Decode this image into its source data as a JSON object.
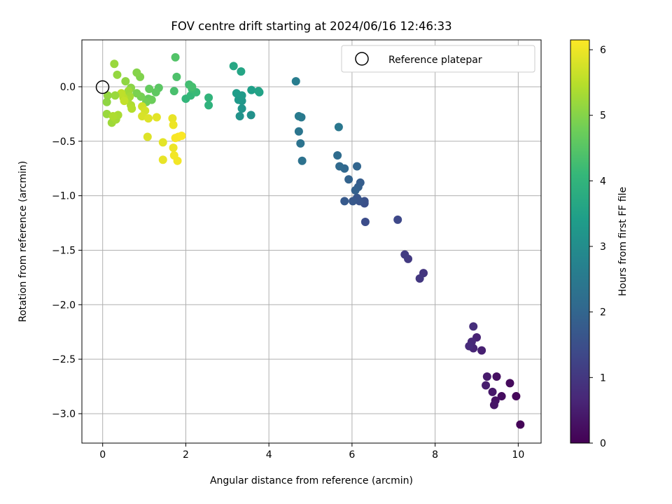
{
  "chart_data": {
    "type": "scatter",
    "title": "FOV centre drift starting at 2024/06/16 12:46:33",
    "xlabel": "Angular distance from reference (arcmin)",
    "ylabel": "Rotation from reference (arcmin)",
    "xlim": [
      -0.5,
      10.55
    ],
    "ylim": [
      -3.27,
      0.43
    ],
    "x_ticks": [
      0,
      2,
      4,
      6,
      8,
      10
    ],
    "x_tick_labels": [
      "0",
      "2",
      "4",
      "6",
      "8",
      "10"
    ],
    "y_ticks": [
      0.0,
      -0.5,
      -1.0,
      -1.5,
      -2.0,
      -2.5,
      -3.0
    ],
    "y_tick_labels": [
      "0.0",
      "−0.5",
      "−1.0",
      "−1.5",
      "−2.0",
      "−2.5",
      "−3.0"
    ],
    "grid": true,
    "legend": {
      "placement": "top-right",
      "entries": [
        "Reference platepar"
      ]
    },
    "colorbar": {
      "label": "Hours from first FF file",
      "range": [
        0,
        6.15
      ],
      "ticks": [
        0,
        1,
        2,
        3,
        4,
        5,
        6
      ],
      "tick_labels": [
        "0",
        "1",
        "2",
        "3",
        "4",
        "5",
        "6"
      ],
      "colormap": "viridis"
    },
    "reference": {
      "x": 0,
      "y": 0
    },
    "points": [
      {
        "x": 10.05,
        "y": -3.1,
        "t": 0.05
      },
      {
        "x": 9.95,
        "y": -2.84,
        "t": 0.1
      },
      {
        "x": 9.8,
        "y": -2.72,
        "t": 0.15
      },
      {
        "x": 9.6,
        "y": -2.84,
        "t": 0.2
      },
      {
        "x": 9.48,
        "y": -2.66,
        "t": 0.25
      },
      {
        "x": 9.45,
        "y": -2.88,
        "t": 0.3
      },
      {
        "x": 9.42,
        "y": -2.92,
        "t": 0.35
      },
      {
        "x": 9.38,
        "y": -2.8,
        "t": 0.4
      },
      {
        "x": 9.25,
        "y": -2.66,
        "t": 0.45
      },
      {
        "x": 9.22,
        "y": -2.74,
        "t": 0.5
      },
      {
        "x": 9.12,
        "y": -2.42,
        "t": 0.55
      },
      {
        "x": 9.0,
        "y": -2.3,
        "t": 0.6
      },
      {
        "x": 8.92,
        "y": -2.4,
        "t": 0.65
      },
      {
        "x": 8.88,
        "y": -2.34,
        "t": 0.7
      },
      {
        "x": 8.82,
        "y": -2.38,
        "t": 0.75
      },
      {
        "x": 8.92,
        "y": -2.2,
        "t": 0.8
      },
      {
        "x": 7.72,
        "y": -1.71,
        "t": 0.95
      },
      {
        "x": 7.63,
        "y": -1.76,
        "t": 1.0
      },
      {
        "x": 7.35,
        "y": -1.58,
        "t": 1.05
      },
      {
        "x": 7.27,
        "y": -1.54,
        "t": 1.1
      },
      {
        "x": 7.1,
        "y": -1.22,
        "t": 1.35
      },
      {
        "x": 6.32,
        "y": -1.24,
        "t": 1.45
      },
      {
        "x": 6.3,
        "y": -1.07,
        "t": 1.5
      },
      {
        "x": 6.3,
        "y": -1.05,
        "t": 1.55
      },
      {
        "x": 6.18,
        "y": -1.05,
        "t": 1.6
      },
      {
        "x": 6.12,
        "y": -1.02,
        "t": 1.65
      },
      {
        "x": 6.02,
        "y": -1.05,
        "t": 1.7
      },
      {
        "x": 5.82,
        "y": -1.05,
        "t": 1.75
      },
      {
        "x": 6.2,
        "y": -0.88,
        "t": 1.8
      },
      {
        "x": 6.15,
        "y": -0.92,
        "t": 1.85
      },
      {
        "x": 6.08,
        "y": -0.95,
        "t": 1.9
      },
      {
        "x": 5.92,
        "y": -0.85,
        "t": 1.95
      },
      {
        "x": 6.12,
        "y": -0.73,
        "t": 2.0
      },
      {
        "x": 5.82,
        "y": -0.75,
        "t": 2.05
      },
      {
        "x": 5.7,
        "y": -0.73,
        "t": 2.1
      },
      {
        "x": 5.65,
        "y": -0.63,
        "t": 2.15
      },
      {
        "x": 4.8,
        "y": -0.68,
        "t": 2.3
      },
      {
        "x": 4.76,
        "y": -0.52,
        "t": 2.35
      },
      {
        "x": 4.72,
        "y": -0.41,
        "t": 2.4
      },
      {
        "x": 5.68,
        "y": -0.37,
        "t": 2.45
      },
      {
        "x": 4.78,
        "y": -0.28,
        "t": 2.5
      },
      {
        "x": 4.72,
        "y": -0.27,
        "t": 2.55
      },
      {
        "x": 4.65,
        "y": 0.05,
        "t": 2.6
      },
      {
        "x": 3.57,
        "y": -0.26,
        "t": 3.1
      },
      {
        "x": 3.3,
        "y": -0.27,
        "t": 3.15
      },
      {
        "x": 3.35,
        "y": -0.2,
        "t": 3.2
      },
      {
        "x": 3.35,
        "y": -0.13,
        "t": 3.25
      },
      {
        "x": 3.27,
        "y": -0.12,
        "t": 3.3
      },
      {
        "x": 3.35,
        "y": -0.08,
        "t": 3.35
      },
      {
        "x": 3.22,
        "y": -0.06,
        "t": 3.4
      },
      {
        "x": 3.58,
        "y": -0.03,
        "t": 3.45
      },
      {
        "x": 3.77,
        "y": -0.05,
        "t": 3.5
      },
      {
        "x": 3.75,
        "y": -0.04,
        "t": 3.55
      },
      {
        "x": 3.33,
        "y": 0.14,
        "t": 3.6
      },
      {
        "x": 3.15,
        "y": 0.19,
        "t": 3.65
      },
      {
        "x": 2.55,
        "y": -0.17,
        "t": 3.95
      },
      {
        "x": 2.55,
        "y": -0.1,
        "t": 4.0
      },
      {
        "x": 2.0,
        "y": -0.11,
        "t": 4.05
      },
      {
        "x": 2.12,
        "y": -0.08,
        "t": 4.1
      },
      {
        "x": 2.25,
        "y": -0.05,
        "t": 4.15
      },
      {
        "x": 2.15,
        "y": -0.02,
        "t": 4.2
      },
      {
        "x": 2.08,
        "y": 0.02,
        "t": 4.25
      },
      {
        "x": 2.15,
        "y": 0.0,
        "t": 4.3
      },
      {
        "x": 1.72,
        "y": -0.04,
        "t": 4.35
      },
      {
        "x": 1.78,
        "y": 0.09,
        "t": 4.4
      },
      {
        "x": 1.75,
        "y": 0.27,
        "t": 4.45
      },
      {
        "x": 1.35,
        "y": -0.01,
        "t": 4.55
      },
      {
        "x": 1.28,
        "y": -0.05,
        "t": 4.6
      },
      {
        "x": 1.12,
        "y": -0.02,
        "t": 4.65
      },
      {
        "x": 1.1,
        "y": -0.11,
        "t": 4.7
      },
      {
        "x": 1.18,
        "y": -0.12,
        "t": 4.75
      },
      {
        "x": 1.05,
        "y": -0.14,
        "t": 4.8
      },
      {
        "x": 0.92,
        "y": -0.09,
        "t": 4.85
      },
      {
        "x": 0.82,
        "y": -0.06,
        "t": 4.9
      },
      {
        "x": 0.9,
        "y": 0.09,
        "t": 4.95
      },
      {
        "x": 0.82,
        "y": 0.13,
        "t": 5.0
      },
      {
        "x": 0.68,
        "y": -0.01,
        "t": 5.05
      },
      {
        "x": 0.55,
        "y": 0.05,
        "t": 5.1
      },
      {
        "x": 0.35,
        "y": 0.11,
        "t": 5.15
      },
      {
        "x": 0.28,
        "y": 0.21,
        "t": 5.2
      },
      {
        "x": 0.62,
        "y": -0.04,
        "t": 5.25
      },
      {
        "x": 0.65,
        "y": -0.09,
        "t": 5.3
      },
      {
        "x": 0.6,
        "y": -0.12,
        "t": 5.35
      },
      {
        "x": 0.68,
        "y": -0.17,
        "t": 5.4
      },
      {
        "x": 0.7,
        "y": -0.2,
        "t": 5.45
      },
      {
        "x": 0.5,
        "y": -0.1,
        "t": 5.5
      },
      {
        "x": 0.45,
        "y": -0.06,
        "t": 5.55
      },
      {
        "x": 0.52,
        "y": -0.13,
        "t": 5.6
      },
      {
        "x": 0.3,
        "y": -0.08,
        "t": 5.2
      },
      {
        "x": 0.12,
        "y": -0.08,
        "t": 5.15
      },
      {
        "x": 0.1,
        "y": -0.14,
        "t": 5.1
      },
      {
        "x": 0.1,
        "y": -0.25,
        "t": 5.2
      },
      {
        "x": 0.22,
        "y": -0.33,
        "t": 5.25
      },
      {
        "x": 0.32,
        "y": -0.3,
        "t": 5.3
      },
      {
        "x": 0.37,
        "y": -0.26,
        "t": 5.35
      },
      {
        "x": 0.25,
        "y": -0.27,
        "t": 5.4
      },
      {
        "x": 0.95,
        "y": -0.18,
        "t": 5.7
      },
      {
        "x": 1.02,
        "y": -0.22,
        "t": 5.75
      },
      {
        "x": 0.95,
        "y": -0.27,
        "t": 5.8
      },
      {
        "x": 1.1,
        "y": -0.29,
        "t": 5.85
      },
      {
        "x": 1.3,
        "y": -0.28,
        "t": 5.9
      },
      {
        "x": 1.08,
        "y": -0.46,
        "t": 5.85
      },
      {
        "x": 1.45,
        "y": -0.51,
        "t": 5.9
      },
      {
        "x": 1.45,
        "y": -0.67,
        "t": 5.95
      },
      {
        "x": 1.68,
        "y": -0.29,
        "t": 5.95
      },
      {
        "x": 1.7,
        "y": -0.35,
        "t": 6.0
      },
      {
        "x": 1.7,
        "y": -0.56,
        "t": 6.0
      },
      {
        "x": 1.72,
        "y": -0.63,
        "t": 6.05
      },
      {
        "x": 1.8,
        "y": -0.68,
        "t": 6.05
      },
      {
        "x": 1.75,
        "y": -0.47,
        "t": 6.1
      },
      {
        "x": 1.82,
        "y": -0.46,
        "t": 6.1
      },
      {
        "x": 1.9,
        "y": -0.45,
        "t": 6.12
      }
    ]
  }
}
